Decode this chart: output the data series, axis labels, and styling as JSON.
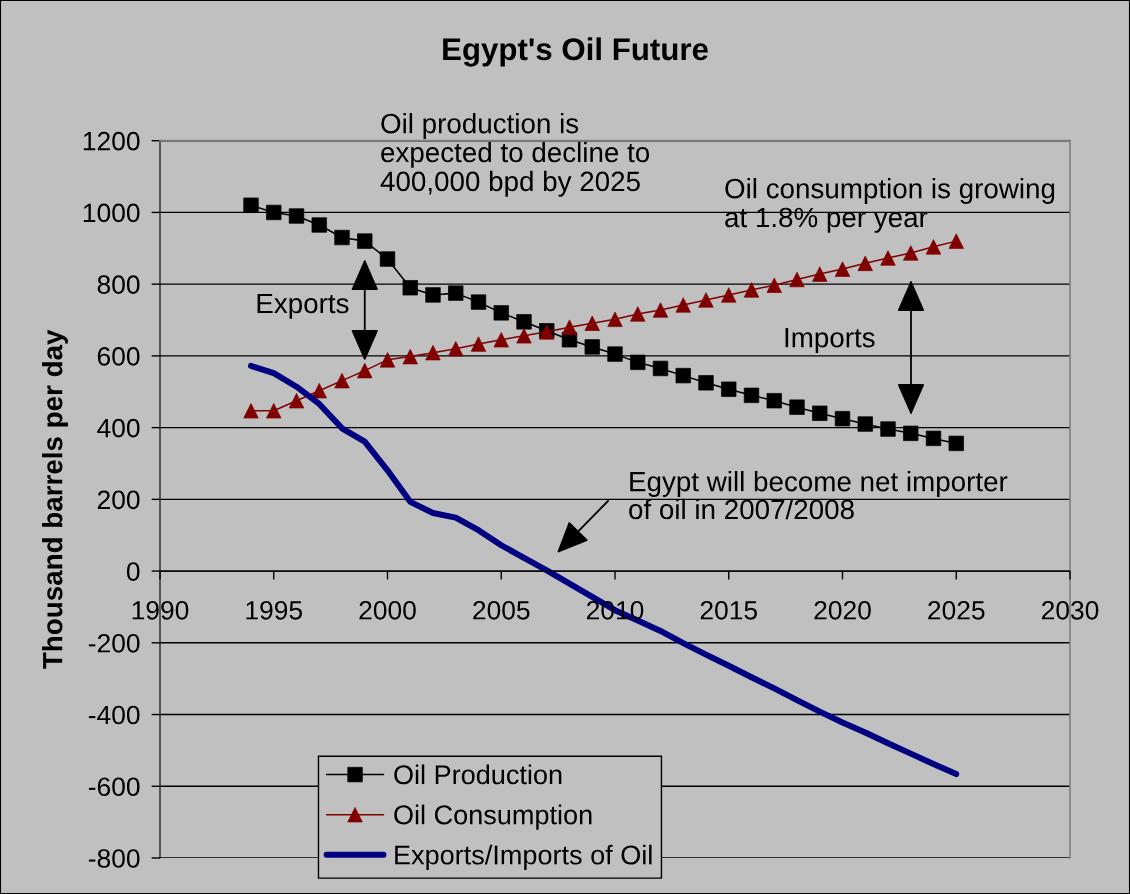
{
  "chart_data": {
    "type": "line",
    "title": "Egypt's Oil Future",
    "ylabel": "Thousand barrels per day",
    "xlim": [
      1990,
      2030
    ],
    "xticks": [
      1990,
      1995,
      2000,
      2005,
      2010,
      2015,
      2020,
      2025,
      2030
    ],
    "ylim": [
      -800,
      1200
    ],
    "yticks": [
      -800,
      -600,
      -400,
      -200,
      0,
      200,
      400,
      600,
      800,
      1000,
      1200
    ],
    "grid": "y",
    "legend": "bottom",
    "annotations": [
      "Oil production is\nexpected to decline to\n400,000 bpd by 2025",
      "Oil consumption is growing\nat 1.8% per year",
      {
        "text": "Exports",
        "x": 1999,
        "y": 920
      },
      "Imports",
      "Egypt will become net importer\nof oil in 2007/2008"
    ],
    "x": [
      1994,
      1995,
      1996,
      1997,
      1998,
      1999,
      2000,
      2001,
      2002,
      2003,
      2004,
      2005,
      2006,
      2007,
      2008,
      2009,
      2010,
      2011,
      2012,
      2013,
      2014,
      2015,
      2016,
      2017,
      2018,
      2019,
      2020,
      2021,
      2022,
      2023,
      2024,
      2025
    ],
    "series": [
      {
        "name": "Oil Production",
        "color": "#000000",
        "marker": "square",
        "values": [
          1020,
          1000,
          990,
          965,
          930,
          920,
          870,
          790,
          770,
          775,
          750,
          720,
          695,
          670,
          645,
          625,
          605,
          582,
          565,
          545,
          525,
          507,
          490,
          475,
          457,
          440,
          425,
          410,
          396,
          384,
          370,
          356
        ]
      },
      {
        "name": "Oil Consumption",
        "color": "#800000",
        "marker": "triangle",
        "values": [
          447,
          447,
          475,
          503,
          531,
          559,
          589,
          598,
          609,
          620,
          633,
          645,
          656,
          667,
          680,
          691,
          702,
          717,
          728,
          742,
          756,
          770,
          784,
          797,
          813,
          828,
          842,
          858,
          873,
          887,
          904,
          920
        ]
      },
      {
        "name": "Exports/Imports of Oil",
        "color": "#000080",
        "marker": "none",
        "values": [
          572,
          552,
          514,
          466,
          398,
          361,
          281,
          193,
          162,
          149,
          114,
          72,
          37,
          2,
          -35,
          -72,
          -109,
          -138,
          -167,
          -201,
          -233,
          -264,
          -296,
          -327,
          -360,
          -392,
          -422,
          -450,
          -480,
          -509,
          -538,
          -566
        ]
      }
    ]
  }
}
